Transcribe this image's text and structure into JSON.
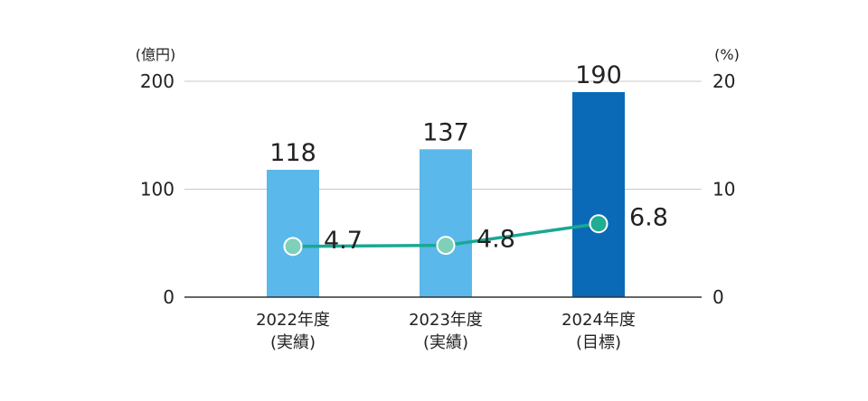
{
  "chart_data": {
    "type": "bar",
    "left_unit": "(億円)",
    "right_unit": "(%)",
    "categories": [
      {
        "line1": "2022年度",
        "line2": "(実績)"
      },
      {
        "line1": "2023年度",
        "line2": "(実績)"
      },
      {
        "line1": "2024年度",
        "line2": "(目標)"
      }
    ],
    "bar_series": {
      "values": [
        118,
        137,
        190
      ],
      "labels": [
        "118",
        "137",
        "190"
      ],
      "colors": [
        "#5bb8ea",
        "#5bb8ea",
        "#0a6ab8"
      ]
    },
    "line_series": {
      "values": [
        4.7,
        4.8,
        6.8
      ],
      "labels": [
        "4.7",
        "4.8",
        "6.8"
      ],
      "line_color": "#1aa893",
      "point_fill": [
        "#7fd0b8",
        "#7fd0b8",
        "#1fad94"
      ]
    },
    "left_axis": {
      "ylim": [
        0,
        200
      ],
      "ticks": [
        "0",
        "100",
        "200"
      ]
    },
    "right_axis": {
      "ylim": [
        0,
        20
      ],
      "ticks": [
        "0",
        "10",
        "20"
      ]
    },
    "grid": true,
    "colors": {
      "grid": "#c8c8c8",
      "axis": "#333333",
      "text": "#222222"
    }
  }
}
